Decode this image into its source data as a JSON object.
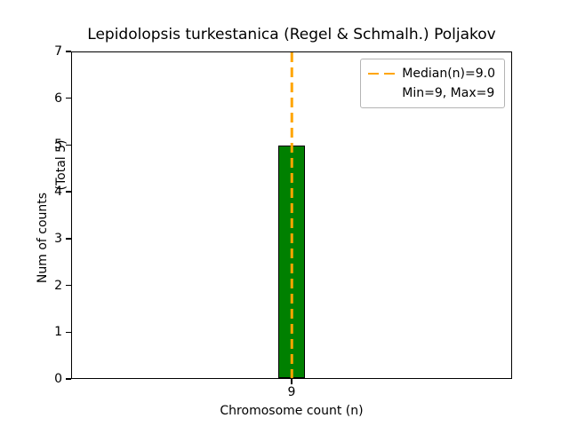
{
  "chart_data": {
    "type": "bar",
    "title": "Lepidolopsis turkestanica (Regel & Schmalh.) Poljakov",
    "xlabel": "Chromosome count (n)",
    "ylabel_main": "Num of counts",
    "ylabel_note": "(Total 5)",
    "categories": [
      "9"
    ],
    "values": [
      5
    ],
    "ylim": [
      0,
      7
    ],
    "yticks": [
      0,
      1,
      2,
      3,
      4,
      5,
      6,
      7
    ],
    "grid": false,
    "bar_color": "#008000",
    "bar_edge_color": "#000000",
    "median_line": {
      "x": 9,
      "color": "#ffa500",
      "style": "dashed",
      "label": "Median(n)=9.0"
    },
    "legend": {
      "position": "upper right",
      "entries": [
        {
          "label": "Median(n)=9.0",
          "line_color": "#ffa500",
          "line_style": "dashed"
        },
        {
          "label": "Min=9, Max=9",
          "line_color": null,
          "line_style": "none"
        }
      ]
    }
  }
}
